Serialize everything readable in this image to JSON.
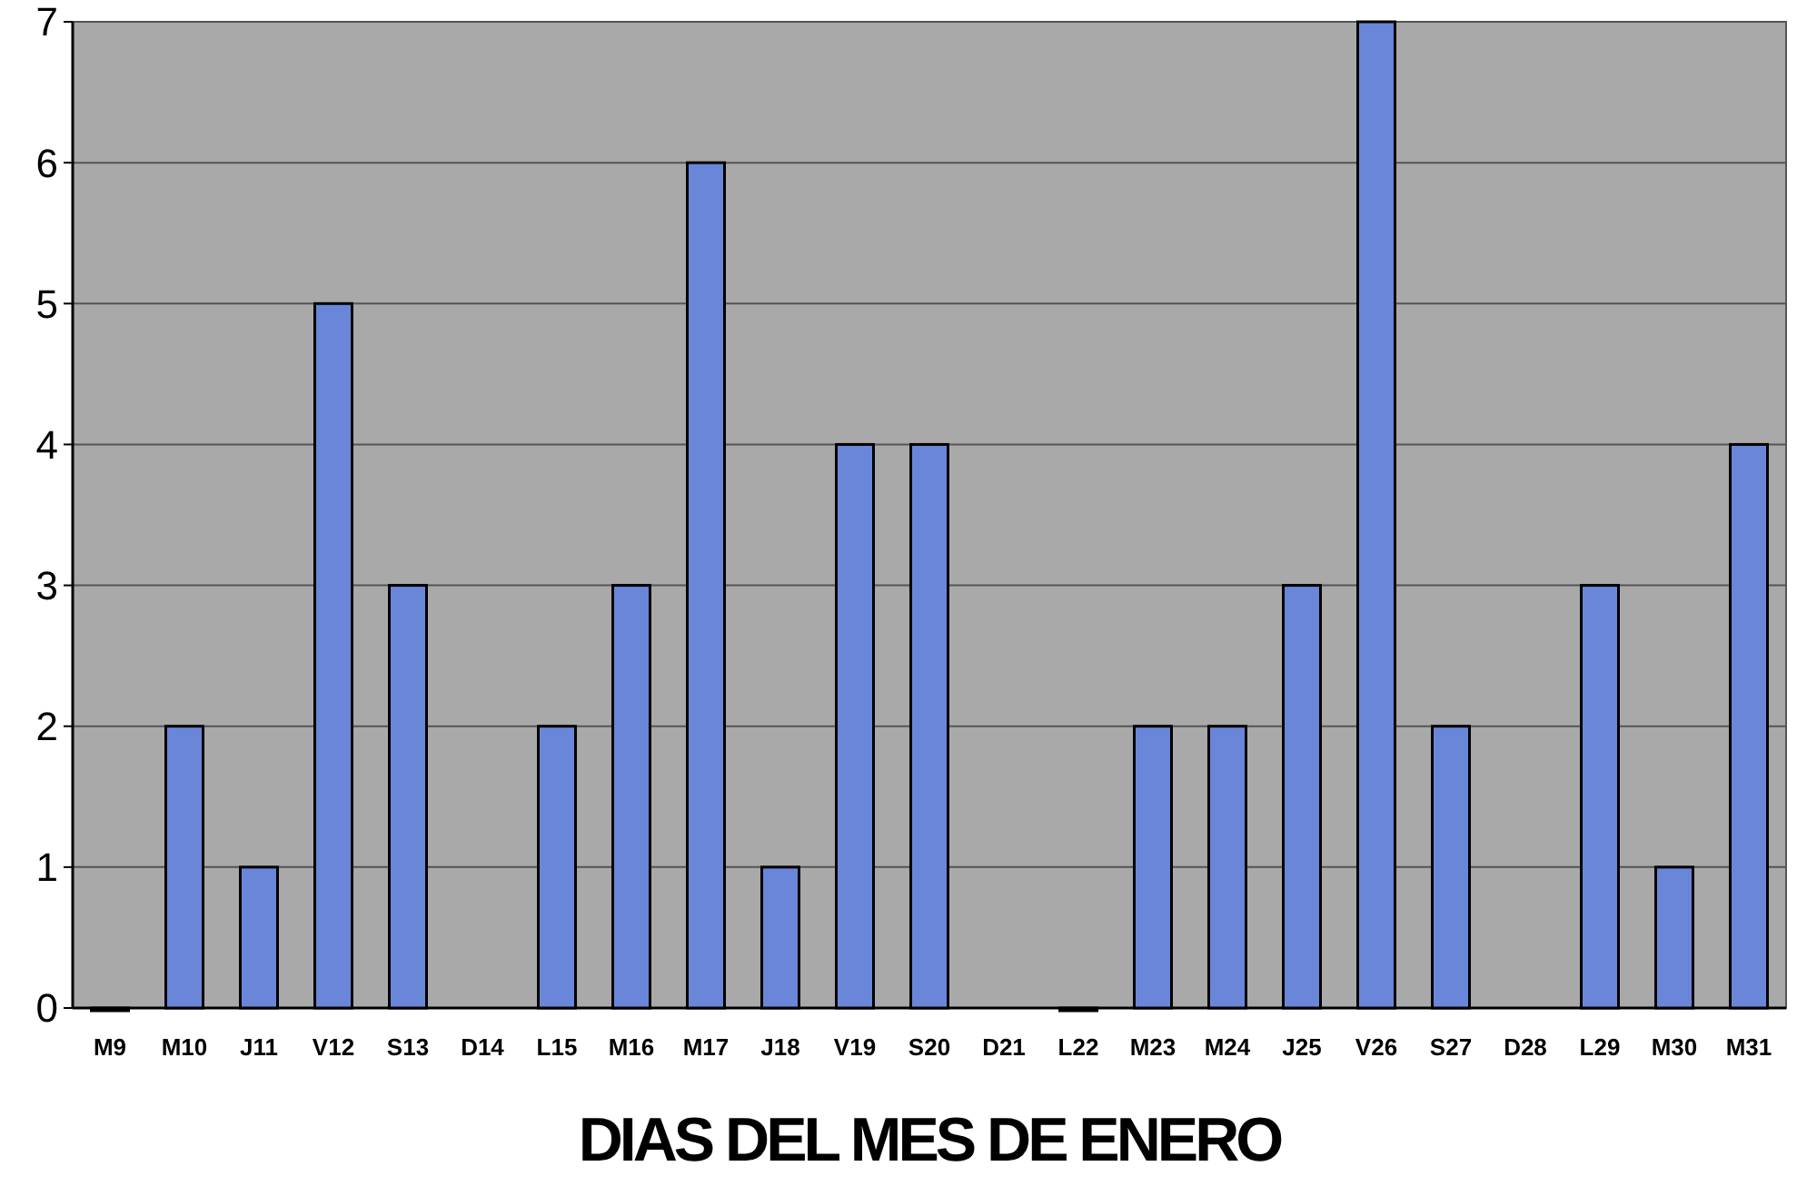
{
  "chart_data": {
    "type": "bar",
    "xlabel": "DIAS DEL MES DE ENERO",
    "categories": [
      "M9",
      "M10",
      "J11",
      "V12",
      "S13",
      "D14",
      "L15",
      "M16",
      "M17",
      "J18",
      "V19",
      "S20",
      "D21",
      "L22",
      "M23",
      "M24",
      "J25",
      "V26",
      "S27",
      "D28",
      "L29",
      "M30",
      "M31"
    ],
    "values": [
      0,
      2,
      1,
      5,
      3,
      null,
      2,
      3,
      6,
      1,
      4,
      4,
      null,
      0,
      2,
      2,
      3,
      7,
      2,
      null,
      3,
      1,
      4
    ],
    "color": "#6a86d8",
    "ylim": [
      0,
      7
    ],
    "yticks": [
      0,
      1,
      2,
      3,
      4,
      5,
      6,
      7
    ],
    "grid": "y"
  }
}
